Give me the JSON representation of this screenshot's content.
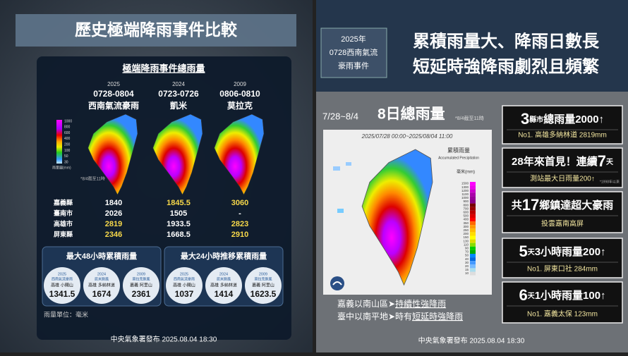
{
  "left": {
    "title": "歷史極端降雨事件比較",
    "map_title": "極端降雨事件總雨量",
    "events": [
      {
        "year": "2025",
        "dates": "0728-0804",
        "name": "西南氣流豪雨"
      },
      {
        "year": "2024",
        "dates": "0723-0726",
        "name": "凱米"
      },
      {
        "year": "2009",
        "dates": "0806-0810",
        "name": "莫拉克"
      }
    ],
    "scale_labels": [
      "1000",
      "800",
      "600",
      "400",
      "200",
      "100",
      "50",
      "30"
    ],
    "scale_unit": "雨量圖(mm)",
    "map_note": "*8/4截至11時",
    "table": {
      "rows": [
        {
          "label": "嘉義縣",
          "values": [
            "1840",
            "1845.5",
            "3060"
          ]
        },
        {
          "label": "臺南市",
          "values": [
            "2026",
            "1505",
            "-"
          ]
        },
        {
          "label": "高雄市",
          "values": [
            "2819",
            "1933.5",
            "2823"
          ]
        },
        {
          "label": "屏東縣",
          "values": [
            "2346",
            "1668.5",
            "2910"
          ]
        }
      ]
    },
    "boxes": [
      {
        "title": "最大48小時累積雨量",
        "items": [
          {
            "year": "2025",
            "event": "西南氣流豪雨",
            "place": "高雄 小關山",
            "value": "1341.5"
          },
          {
            "year": "2024",
            "event": "凱米颱風",
            "place": "高雄 多納林道",
            "value": "1674"
          },
          {
            "year": "2009",
            "event": "莫拉克颱風",
            "place": "嘉義 阿里山",
            "value": "2361"
          }
        ]
      },
      {
        "title": "最大24小時推移累積雨量",
        "items": [
          {
            "year": "2025",
            "event": "西南氣流豪雨",
            "place": "高雄 小關山",
            "value": "1037"
          },
          {
            "year": "2024",
            "event": "凱米颱風",
            "place": "高雄 多納林道",
            "value": "1414"
          },
          {
            "year": "2009",
            "event": "莫拉克颱風",
            "place": "嘉義 阿里山",
            "value": "1623.5"
          }
        ]
      }
    ],
    "unit": "雨量單位：毫米",
    "footer": "中央氣象署發布 2025.08.04 18:30"
  },
  "right": {
    "tag": [
      "2025年",
      "0728西南氣流",
      "豪雨事件"
    ],
    "title": [
      "累積雨量大、降雨日數長",
      "短延時強降雨劇烈且頻繁"
    ],
    "heading": {
      "range": "7/28~8/4",
      "main": "8日總雨量",
      "note": "*8/4截至11時"
    },
    "map": {
      "period": "2025/07/28 00:00~2025/08/04 11:00",
      "name": "累積雨量",
      "name_en": "Accumulated Precipitation",
      "unit": "毫米(mm)",
      "scale": [
        "1500",
        "1300",
        "1200",
        "1100",
        "1000",
        "900",
        "800",
        "700",
        "600",
        "500",
        "400",
        "350",
        "300",
        "250",
        "200",
        "150",
        "130",
        "110",
        "90",
        "70",
        "50",
        "40",
        "30",
        "20",
        "15",
        "10"
      ]
    },
    "captions": [
      {
        "lead": "嘉義以南山區➤",
        "emph": "持續性強降雨"
      },
      {
        "lead": "臺中以南平地➤時有",
        "emph": "短延時強降雨"
      }
    ],
    "cards": [
      {
        "parts": [
          "3",
          "縣市",
          "總雨量2000↑"
        ],
        "sub": "No1. 高雄多納林道 2819mm"
      },
      {
        "parts": [
          "28年來首見！連續",
          "7",
          "天"
        ],
        "sub": "測站最大日雨量200↑",
        "note": "*1998年以來"
      },
      {
        "parts": [
          "共",
          "17",
          "鄉鎮達",
          "超大豪雨"
        ],
        "sub": "投雲嘉南高屏"
      },
      {
        "parts": [
          "5",
          "天",
          "3小時雨量",
          "200↑"
        ],
        "sub": "No1. 屏東口社 284mm"
      },
      {
        "parts": [
          "6",
          "天",
          "1小時雨量",
          "100↑"
        ],
        "sub": "No1. 嘉義太保 123mm"
      }
    ],
    "footer": "中央氣象署發布 2025.08.04 18:30"
  }
}
